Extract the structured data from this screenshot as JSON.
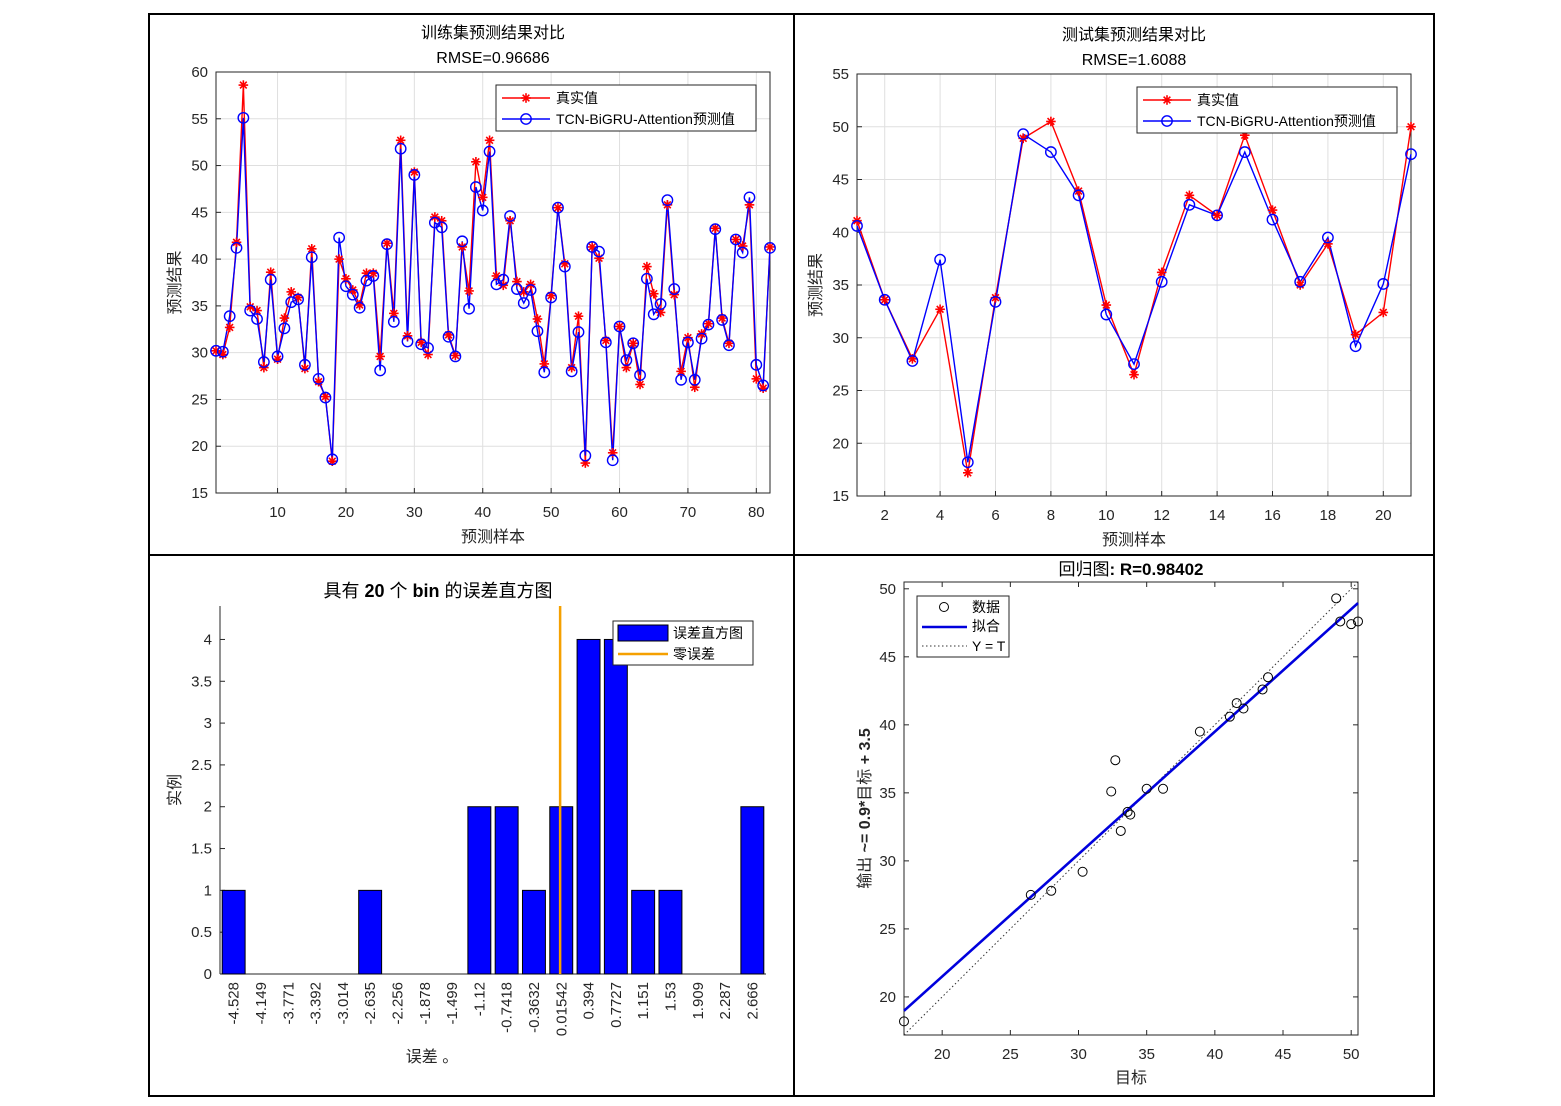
{
  "chart_data": [
    {
      "id": "train",
      "type": "line",
      "title": "训练集预测结果对比",
      "subtitle": "RMSE=0.96686",
      "xlabel": "预测样本",
      "ylabel": "预测结果",
      "xlim": [
        1,
        82
      ],
      "ylim": [
        15,
        60
      ],
      "xticks": [
        10,
        20,
        30,
        40,
        50,
        60,
        70,
        80
      ],
      "yticks": [
        15,
        20,
        25,
        30,
        35,
        40,
        45,
        50,
        55,
        60
      ],
      "grid": true,
      "legend_position": "top-right",
      "series": [
        {
          "name": "真实值",
          "color": "#ff0000",
          "marker": "asterisk",
          "values": [
            30.2,
            29.8,
            32.7,
            41.8,
            58.6,
            34.9,
            34.5,
            28.4,
            38.6,
            29.3,
            33.7,
            36.5,
            35.9,
            28.3,
            41.1,
            26.9,
            25.3,
            18.4,
            40,
            37.9,
            36.7,
            35.1,
            38.5,
            38.5,
            29.6,
            41.7,
            34.2,
            52.7,
            31.8,
            49.3,
            31.1,
            29.8,
            44.5,
            44.1,
            31.9,
            29.7,
            41.3,
            36.6,
            50.4,
            46.6,
            52.7,
            38.2,
            37.2,
            44.1,
            37.6,
            36.5,
            37.3,
            33.6,
            28.8,
            36.1,
            45.5,
            39.5,
            28.4,
            33.9,
            18.2,
            41.3,
            40.1,
            31.3,
            19.3,
            32.8,
            28.4,
            31,
            26.6,
            39.2,
            36.3,
            34.3,
            45.8,
            36.2,
            28,
            31.6,
            26.3,
            32,
            33.1,
            43.3,
            33.7,
            31,
            42.1,
            41.4,
            45.8,
            27.2,
            26.2,
            41.3
          ]
        },
        {
          "name": "TCN-BiGRU-Attention预测值",
          "color": "#0000ff",
          "marker": "circle",
          "values": [
            30.2,
            30.1,
            33.9,
            41.2,
            55.1,
            34.5,
            33.6,
            29,
            37.8,
            29.6,
            32.6,
            35.4,
            35.7,
            28.7,
            40.2,
            27.2,
            25.2,
            18.6,
            42.3,
            37.1,
            36.2,
            34.8,
            37.7,
            38.2,
            28.1,
            41.6,
            33.3,
            51.8,
            31.2,
            49,
            30.9,
            30.5,
            43.9,
            43.4,
            31.7,
            29.6,
            41.9,
            34.7,
            47.7,
            45.2,
            51.5,
            37.3,
            37.8,
            44.6,
            36.8,
            35.3,
            36.7,
            32.3,
            27.9,
            35.9,
            45.5,
            39.2,
            28,
            32.2,
            19,
            41.3,
            40.8,
            31.1,
            18.5,
            32.8,
            29.2,
            31,
            27.6,
            37.9,
            34.1,
            35.2,
            46.3,
            36.8,
            27.1,
            31.1,
            27.1,
            31.5,
            33,
            43.2,
            33.5,
            30.8,
            42.1,
            40.7,
            46.6,
            28.7,
            26.5,
            41.2
          ]
        }
      ]
    },
    {
      "id": "test",
      "type": "line",
      "title": "测试集预测结果对比",
      "subtitle": "RMSE=1.6088",
      "xlabel": "预测样本",
      "ylabel": "预测结果",
      "xlim": [
        1,
        21
      ],
      "ylim": [
        15,
        55
      ],
      "xticks": [
        2,
        4,
        6,
        8,
        10,
        12,
        14,
        16,
        18,
        20
      ],
      "yticks": [
        15,
        20,
        25,
        30,
        35,
        40,
        45,
        50,
        55
      ],
      "grid": true,
      "legend_position": "top-right",
      "series": [
        {
          "name": "真实值",
          "color": "#ff0000",
          "marker": "asterisk",
          "values": [
            41.1,
            33.6,
            28,
            32.7,
            17.2,
            33.8,
            48.9,
            50.5,
            43.9,
            33.1,
            26.5,
            36.2,
            43.5,
            41.6,
            49.2,
            42.1,
            35,
            38.9,
            30.3,
            32.4,
            50
          ]
        },
        {
          "name": "TCN-BiGRU-Attention预测值",
          "color": "#0000ff",
          "marker": "circle",
          "values": [
            40.6,
            33.6,
            27.8,
            37.4,
            18.2,
            33.4,
            49.3,
            47.6,
            43.5,
            32.2,
            27.5,
            35.3,
            42.6,
            41.6,
            47.6,
            41.2,
            35.3,
            39.5,
            29.2,
            35.1,
            47.4
          ]
        }
      ]
    },
    {
      "id": "hist",
      "type": "bar",
      "title": "具有 20 个 bin 的误差直方图",
      "title_parts": [
        "具有 ",
        "20",
        " 个 ",
        "bin",
        " 的误差直方图"
      ],
      "xlabel": "误差 。",
      "ylabel": "实例",
      "ylim": [
        0,
        4.4
      ],
      "yticks": [
        0,
        0.5,
        1,
        1.5,
        2,
        2.5,
        3,
        3.5,
        4
      ],
      "grid": false,
      "legend_position": "top-right",
      "categories": [
        "-4.528",
        "-4.149",
        "-3.771",
        "-3.392",
        "-3.014",
        "-2.635",
        "-2.256",
        "-1.878",
        "-1.499",
        "-1.12",
        "-0.7418",
        "-0.3632",
        "0.01542",
        "0.394",
        "0.7727",
        "1.151",
        "1.53",
        "1.909",
        "2.287",
        "2.666"
      ],
      "series": [
        {
          "name": "误差直方图",
          "color": "#0000ff",
          "values": [
            1,
            0,
            0,
            0,
            0,
            1,
            0,
            0,
            0,
            2,
            2,
            1,
            2,
            4,
            4,
            1,
            1,
            0,
            0,
            2
          ]
        }
      ],
      "zero_line": {
        "name": "零误差",
        "color": "#f5a000",
        "x": 0
      }
    },
    {
      "id": "regression",
      "type": "scatter",
      "title": "回归图: R=0.98402",
      "title_parts": [
        "回归图",
        ": R=0.98402"
      ],
      "xlabel": "目标",
      "ylabel": "输出 ~= 0.9*目标 + 3.5",
      "ylabel_parts": [
        "输出 ",
        "~= 0.9*",
        "目标",
        " + 3.5"
      ],
      "xlim": [
        17.2,
        50.5
      ],
      "ylim": [
        17.2,
        50.5
      ],
      "xticks": [
        20,
        25,
        30,
        35,
        40,
        45,
        50
      ],
      "yticks": [
        20,
        25,
        30,
        35,
        40,
        45,
        50
      ],
      "grid": false,
      "legend_position": "top-left",
      "legend": [
        "数据",
        "拟合",
        "Y = T"
      ],
      "fit": {
        "slope": 0.9,
        "intercept": 3.5,
        "color": "#0000dd"
      },
      "points": [
        {
          "x": 41.1,
          "y": 40.6
        },
        {
          "x": 33.6,
          "y": 33.6
        },
        {
          "x": 28,
          "y": 27.8
        },
        {
          "x": 32.7,
          "y": 37.4
        },
        {
          "x": 17.2,
          "y": 18.2
        },
        {
          "x": 33.8,
          "y": 33.4
        },
        {
          "x": 48.9,
          "y": 49.3
        },
        {
          "x": 50.5,
          "y": 47.6
        },
        {
          "x": 43.9,
          "y": 43.5
        },
        {
          "x": 33.1,
          "y": 32.2
        },
        {
          "x": 26.5,
          "y": 27.5
        },
        {
          "x": 36.2,
          "y": 35.3
        },
        {
          "x": 43.5,
          "y": 42.6
        },
        {
          "x": 41.6,
          "y": 41.6
        },
        {
          "x": 49.2,
          "y": 47.6
        },
        {
          "x": 42.1,
          "y": 41.2
        },
        {
          "x": 35,
          "y": 35.3
        },
        {
          "x": 38.9,
          "y": 39.5
        },
        {
          "x": 30.3,
          "y": 29.2
        },
        {
          "x": 32.4,
          "y": 35.1
        },
        {
          "x": 50,
          "y": 47.4
        }
      ]
    }
  ]
}
